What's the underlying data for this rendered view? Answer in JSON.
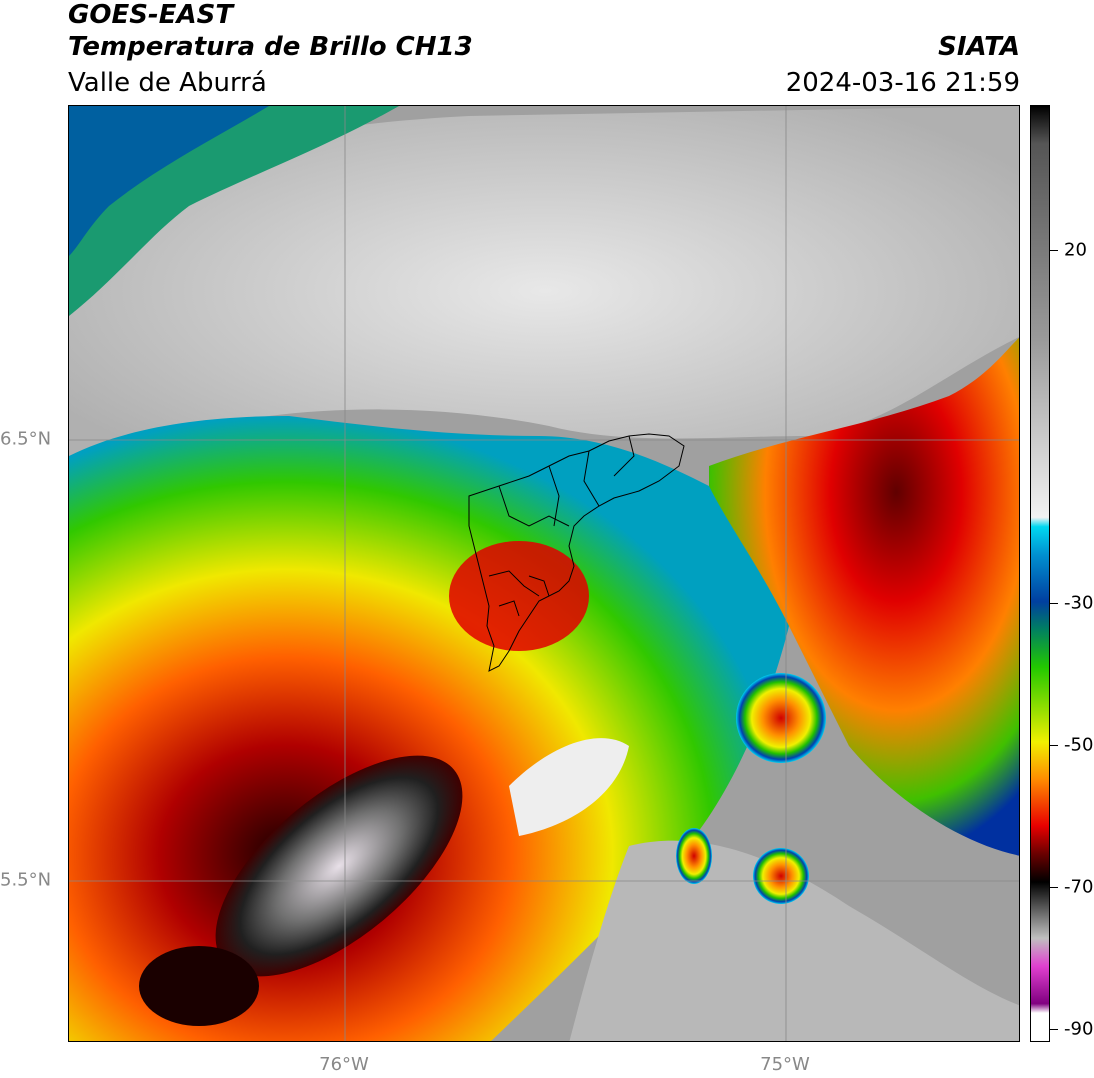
{
  "header": {
    "satellite": "GOES-EAST",
    "product": "Temperatura de Brillo CH13",
    "region": "Valle de Aburrá",
    "organization": "SIATA",
    "datetime": "2024-03-16 21:59"
  },
  "map": {
    "lon_ticks": [
      "76°W",
      "75°W"
    ],
    "lat_ticks": [
      "6.5°N",
      "5.5°N"
    ]
  },
  "colorbar": {
    "ticks": [
      "20",
      "-30",
      "-50",
      "-70",
      "-90"
    ],
    "colors": {
      "warm_gray": "#9a9a9a",
      "light": "#f2f2f2",
      "cyan": "#00d8f0",
      "blue": "#003fa0",
      "green": "#22c800",
      "yellow": "#f0f000",
      "orange": "#ff8c00",
      "red": "#e80000",
      "dark_red": "#6a0000",
      "black": "#000000",
      "magenta": "#e040d0"
    }
  }
}
